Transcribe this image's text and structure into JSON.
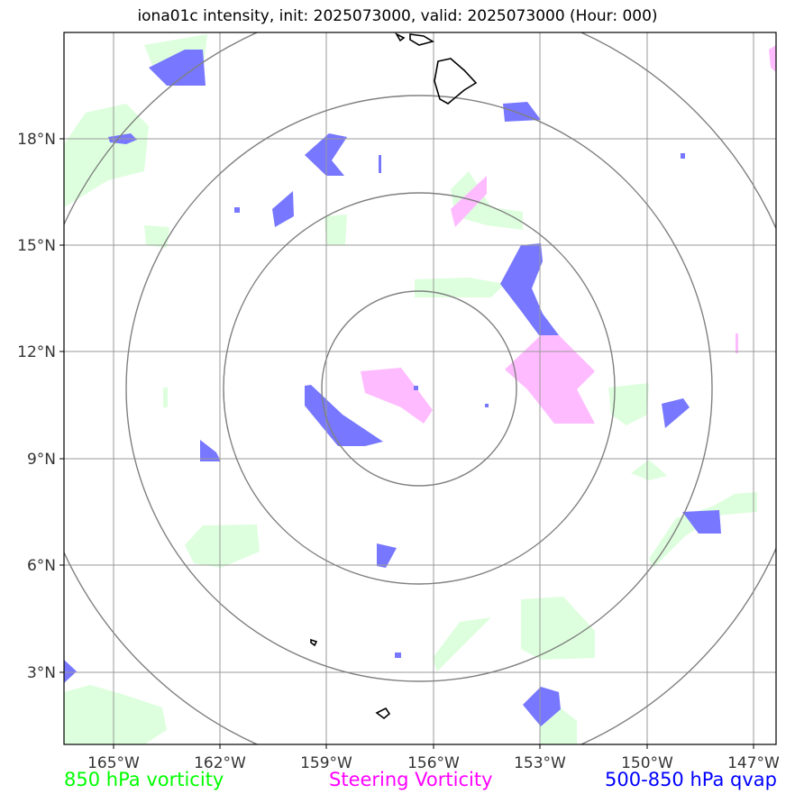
{
  "title": "iona01c intensity, init: 2025073000, valid: 2025073000 (Hour: 000)",
  "legend": {
    "green": "850 hPa vorticity",
    "magenta": "Steering Vorticity",
    "blue": "500-850 hPa qvap"
  },
  "axes": {
    "lon_labels": [
      "165°W",
      "162°W",
      "159°W",
      "156°W",
      "153°W",
      "150°W",
      "147°W"
    ],
    "lat_labels": [
      "18°N",
      "15°N",
      "12°N",
      "9°N",
      "6°N",
      "3°N"
    ]
  },
  "colors": {
    "green_fill": "#ddffdd",
    "magenta_fill": "#ffbbff",
    "blue_fill": "#7777ff",
    "grid": "#999999",
    "rings": "#808080"
  }
}
